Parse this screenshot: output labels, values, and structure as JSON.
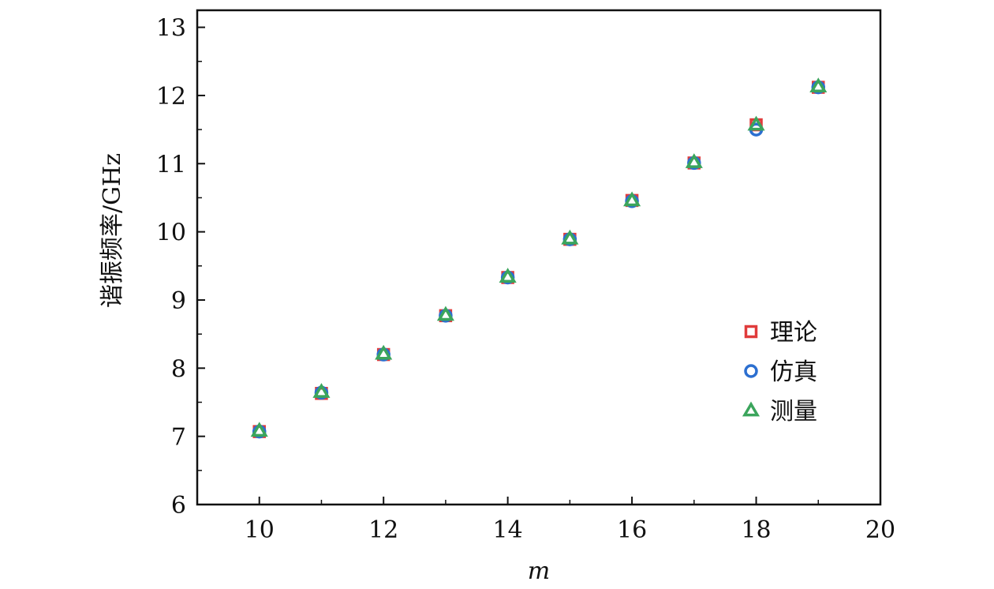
{
  "chart_data": {
    "type": "scatter",
    "xlabel": "m",
    "ylabel": "谐振频率/GHz",
    "xlim": [
      9,
      20
    ],
    "ylim": [
      6,
      13.25
    ],
    "xticks": [
      10,
      12,
      14,
      16,
      18,
      20
    ],
    "yticks": [
      6,
      7,
      8,
      9,
      10,
      11,
      12,
      13
    ],
    "grid": false,
    "legend_position": "bottom-right",
    "series": [
      {
        "name": "理论",
        "marker": "square",
        "color": "#e03c3c",
        "points": [
          [
            10,
            7.07
          ],
          [
            11,
            7.63
          ],
          [
            12,
            8.2
          ],
          [
            13,
            8.77
          ],
          [
            14,
            9.33
          ],
          [
            15,
            9.89
          ],
          [
            16,
            10.46
          ],
          [
            17,
            11.01
          ],
          [
            18,
            11.57
          ],
          [
            19,
            12.12
          ]
        ]
      },
      {
        "name": "仿真",
        "marker": "circle",
        "color": "#2c6fd0",
        "points": [
          [
            10,
            7.07
          ],
          [
            11,
            7.64
          ],
          [
            12,
            8.2
          ],
          [
            13,
            8.77
          ],
          [
            14,
            9.33
          ],
          [
            15,
            9.89
          ],
          [
            16,
            10.45
          ],
          [
            17,
            11.01
          ],
          [
            18,
            11.5
          ],
          [
            19,
            12.12
          ]
        ]
      },
      {
        "name": "测量",
        "marker": "triangle",
        "color": "#3ba55c",
        "points": [
          [
            10,
            7.08
          ],
          [
            11,
            7.65
          ],
          [
            12,
            8.21
          ],
          [
            13,
            8.78
          ],
          [
            14,
            9.34
          ],
          [
            15,
            9.9
          ],
          [
            16,
            10.46
          ],
          [
            17,
            11.02
          ],
          [
            18,
            11.57
          ],
          [
            19,
            12.13
          ]
        ]
      }
    ]
  }
}
